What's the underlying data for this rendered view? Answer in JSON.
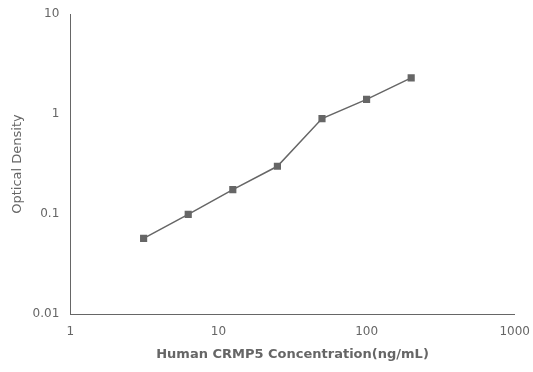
{
  "chart_data": {
    "type": "line",
    "x": [
      3.125,
      6.25,
      12.5,
      25,
      50,
      100,
      200
    ],
    "values": [
      0.057,
      0.099,
      0.175,
      0.3,
      0.9,
      1.4,
      2.3
    ],
    "xlabel": "Human CRMP5 Concentration(ng/mL)",
    "ylabel": "Optical Density",
    "xlim": [
      1,
      1000
    ],
    "ylim": [
      0.01,
      10
    ],
    "xticks": [
      1,
      10,
      100,
      1000
    ],
    "yticks": [
      0.01,
      0.1,
      1,
      10
    ],
    "log": true,
    "grid": false,
    "color": "#666666",
    "marker": "square"
  }
}
